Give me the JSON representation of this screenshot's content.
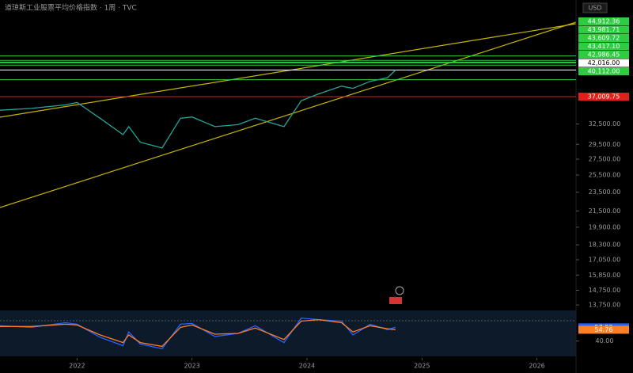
{
  "chart_data": [
    {
      "type": "line",
      "title": "道琼斯工业股票平均价格指数 · 1周 · TVC",
      "currency": "USD",
      "log_scale": true,
      "color": "#26a69a",
      "x": [
        2021.33,
        2021.6,
        2021.9,
        2022.0,
        2022.2,
        2022.4,
        2022.45,
        2022.55,
        2022.74,
        2022.9,
        2023.0,
        2023.2,
        2023.4,
        2023.55,
        2023.8,
        2023.95,
        2024.1,
        2024.3,
        2024.4,
        2024.55,
        2024.7,
        2024.77
      ],
      "values": [
        34700,
        35000,
        35600,
        36000,
        33400,
        30900,
        32100,
        29800,
        29000,
        33400,
        33600,
        32100,
        32400,
        33400,
        32100,
        36300,
        37500,
        38900,
        38500,
        39800,
        40500,
        42000
      ],
      "xlim": [
        2021.33,
        2026.34
      ],
      "xticks": [
        2022,
        2023,
        2024,
        2025,
        2026
      ],
      "ylim": [
        13500,
        57500
      ],
      "yticks": [
        {
          "value": 32500,
          "label": "32,500.00"
        },
        {
          "value": 29500,
          "label": "29,500.00"
        },
        {
          "value": 27500,
          "label": "27,500.00"
        },
        {
          "value": 25500,
          "label": "25,500.00"
        },
        {
          "value": 23500,
          "label": "23,500.00"
        },
        {
          "value": 21500,
          "label": "21,500.00"
        },
        {
          "value": 19900,
          "label": "19,900.00"
        },
        {
          "value": 18300,
          "label": "18,300.00"
        },
        {
          "value": 17050,
          "label": "17,050.00"
        },
        {
          "value": 15850,
          "label": "15,850.00"
        },
        {
          "value": 14750,
          "label": "14,750.00"
        },
        {
          "value": 13750,
          "label": "13,750.00"
        }
      ],
      "levels": [
        {
          "value": 44912.36,
          "label": "44,912.36",
          "color": "#2ecc40"
        },
        {
          "value": 43981.71,
          "label": "43,981.71",
          "color": "#2ecc40"
        },
        {
          "value": 43609.72,
          "label": "43,609.72",
          "color": "#2ecc40"
        },
        {
          "value": 43417.1,
          "label": "43,417.10",
          "color": "#2ecc40"
        },
        {
          "value": 42986.45,
          "label": "42,986.45",
          "color": "#2ecc40"
        },
        {
          "value": 42016,
          "label": "42,016.00",
          "color": "#ffffff"
        },
        {
          "value": 40112,
          "label": "40,112.00",
          "color": "#2ecc40"
        },
        {
          "value": 37009.75,
          "label": "37,009.75",
          "color": "#e0201b"
        }
      ]
    },
    {
      "type": "line",
      "x": [
        2021.33,
        2021.6,
        2021.9,
        2022.0,
        2022.2,
        2022.4,
        2022.45,
        2022.55,
        2022.74,
        2022.9,
        2023.0,
        2023.2,
        2023.4,
        2023.55,
        2023.8,
        2023.95,
        2024.1,
        2024.3,
        2024.4,
        2024.55,
        2024.7,
        2024.77
      ],
      "series": [
        {
          "color": "#2962ff",
          "values": [
            60,
            58,
            64,
            62,
            45,
            34,
            52,
            36,
            30,
            62,
            63,
            46,
            50,
            60,
            38,
            70,
            68,
            66,
            48,
            62,
            55,
            57.92
          ],
          "value_labels": [
            null,
            null,
            null,
            null,
            null,
            null,
            null,
            null,
            null,
            null,
            null,
            null,
            null,
            null,
            null,
            null,
            null,
            null,
            null,
            null,
            null,
            "57.92"
          ]
        },
        {
          "color": "#ff7f27",
          "values": [
            59,
            59,
            62,
            61,
            48,
            38,
            48,
            38,
            33,
            58,
            61,
            49,
            50,
            57,
            42,
            66,
            68,
            64,
            52,
            60,
            56,
            54.76
          ],
          "value_labels": [
            null,
            null,
            null,
            null,
            null,
            null,
            null,
            null,
            null,
            null,
            null,
            null,
            null,
            null,
            null,
            null,
            null,
            null,
            null,
            null,
            null,
            "54.76"
          ]
        }
      ],
      "xlim": [
        2021.33,
        2026.34
      ],
      "ylim": [
        20,
        80
      ],
      "yticks": [
        {
          "value": 40,
          "label": "40.00"
        }
      ]
    }
  ]
}
